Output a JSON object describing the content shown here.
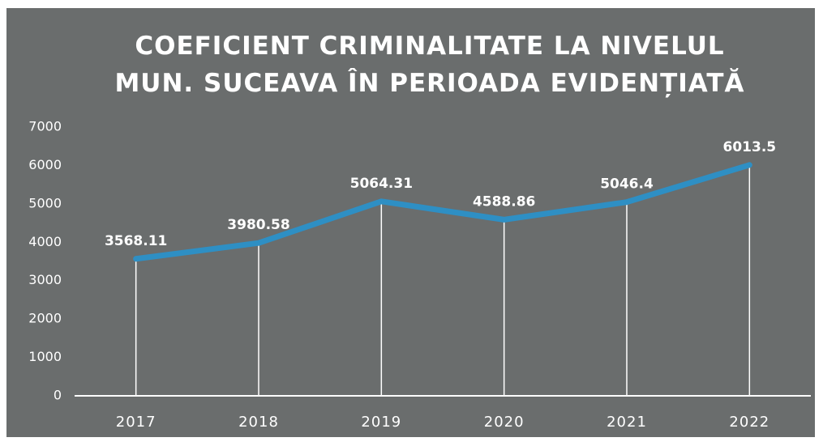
{
  "chart_data": {
    "type": "line",
    "title": "COEFICIENT CRIMINALITATE LA NIVELUL MUN. SUCEAVA ÎN PERIOADA EVIDENȚIATĂ",
    "categories": [
      "2017",
      "2018",
      "2019",
      "2020",
      "2021",
      "2022"
    ],
    "values": [
      3568.11,
      3980.58,
      5064.31,
      4588.86,
      5046.4,
      6013.5
    ],
    "color": "#2e8fc4",
    "ylim": [
      0,
      7000
    ],
    "yticks": [
      0,
      1000,
      2000,
      3000,
      4000,
      5000,
      6000,
      7000
    ],
    "grid": false
  }
}
